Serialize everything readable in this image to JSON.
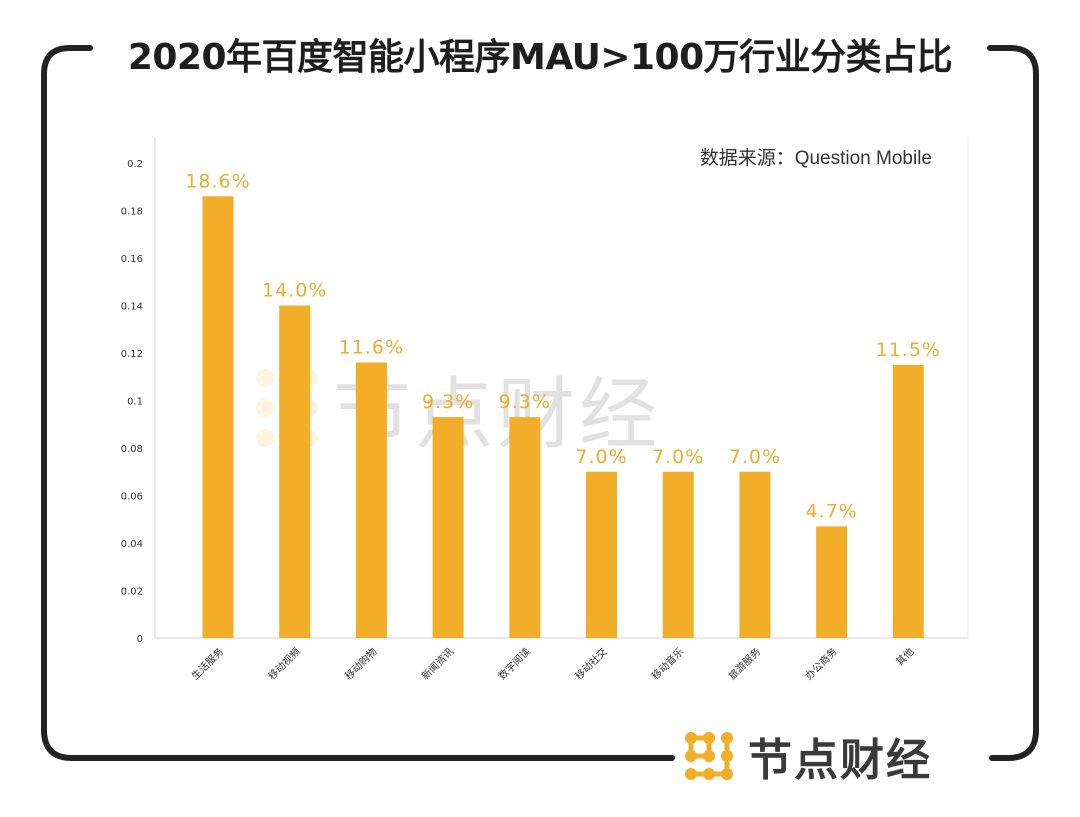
{
  "title": "2020年百度智能小程序MAU>100万行业分类占比",
  "source_note": "数据来源：Question Mobile",
  "brand": {
    "name": "节点财经",
    "icon": "dotted-node-logo-icon",
    "accent": "#F2AE28"
  },
  "watermark": {
    "name": "节点财经"
  },
  "colors": {
    "bar": "#F2AE28",
    "label": "#EDAE30",
    "frame": "#222222",
    "axis_text": "#333333"
  },
  "chart_data": {
    "type": "bar",
    "title": "2020年百度智能小程序MAU>100万行业分类占比",
    "xlabel": "",
    "ylabel": "",
    "categories": [
      "生活服务",
      "移动视频",
      "移动购物",
      "新闻资讯",
      "数字阅读",
      "移动社交",
      "移动音乐",
      "旅游服务",
      "办公商务",
      "其他"
    ],
    "values": [
      0.186,
      0.14,
      0.116,
      0.093,
      0.093,
      0.07,
      0.07,
      0.07,
      0.047,
      0.115
    ],
    "data_labels": [
      "18.6%",
      "14.0%",
      "11.6%",
      "9.3%",
      "9.3%",
      "7.0%",
      "7.0%",
      "7.0%",
      "4.7%",
      "11.5%"
    ],
    "ylim": [
      0,
      0.2
    ],
    "yticks": [
      "0",
      "0.02",
      "0.04",
      "0.06",
      "0.08",
      "0.1",
      "0.12",
      "0.14",
      "0.16",
      "0.18",
      "0.2"
    ],
    "grid": false,
    "legend": "none"
  }
}
